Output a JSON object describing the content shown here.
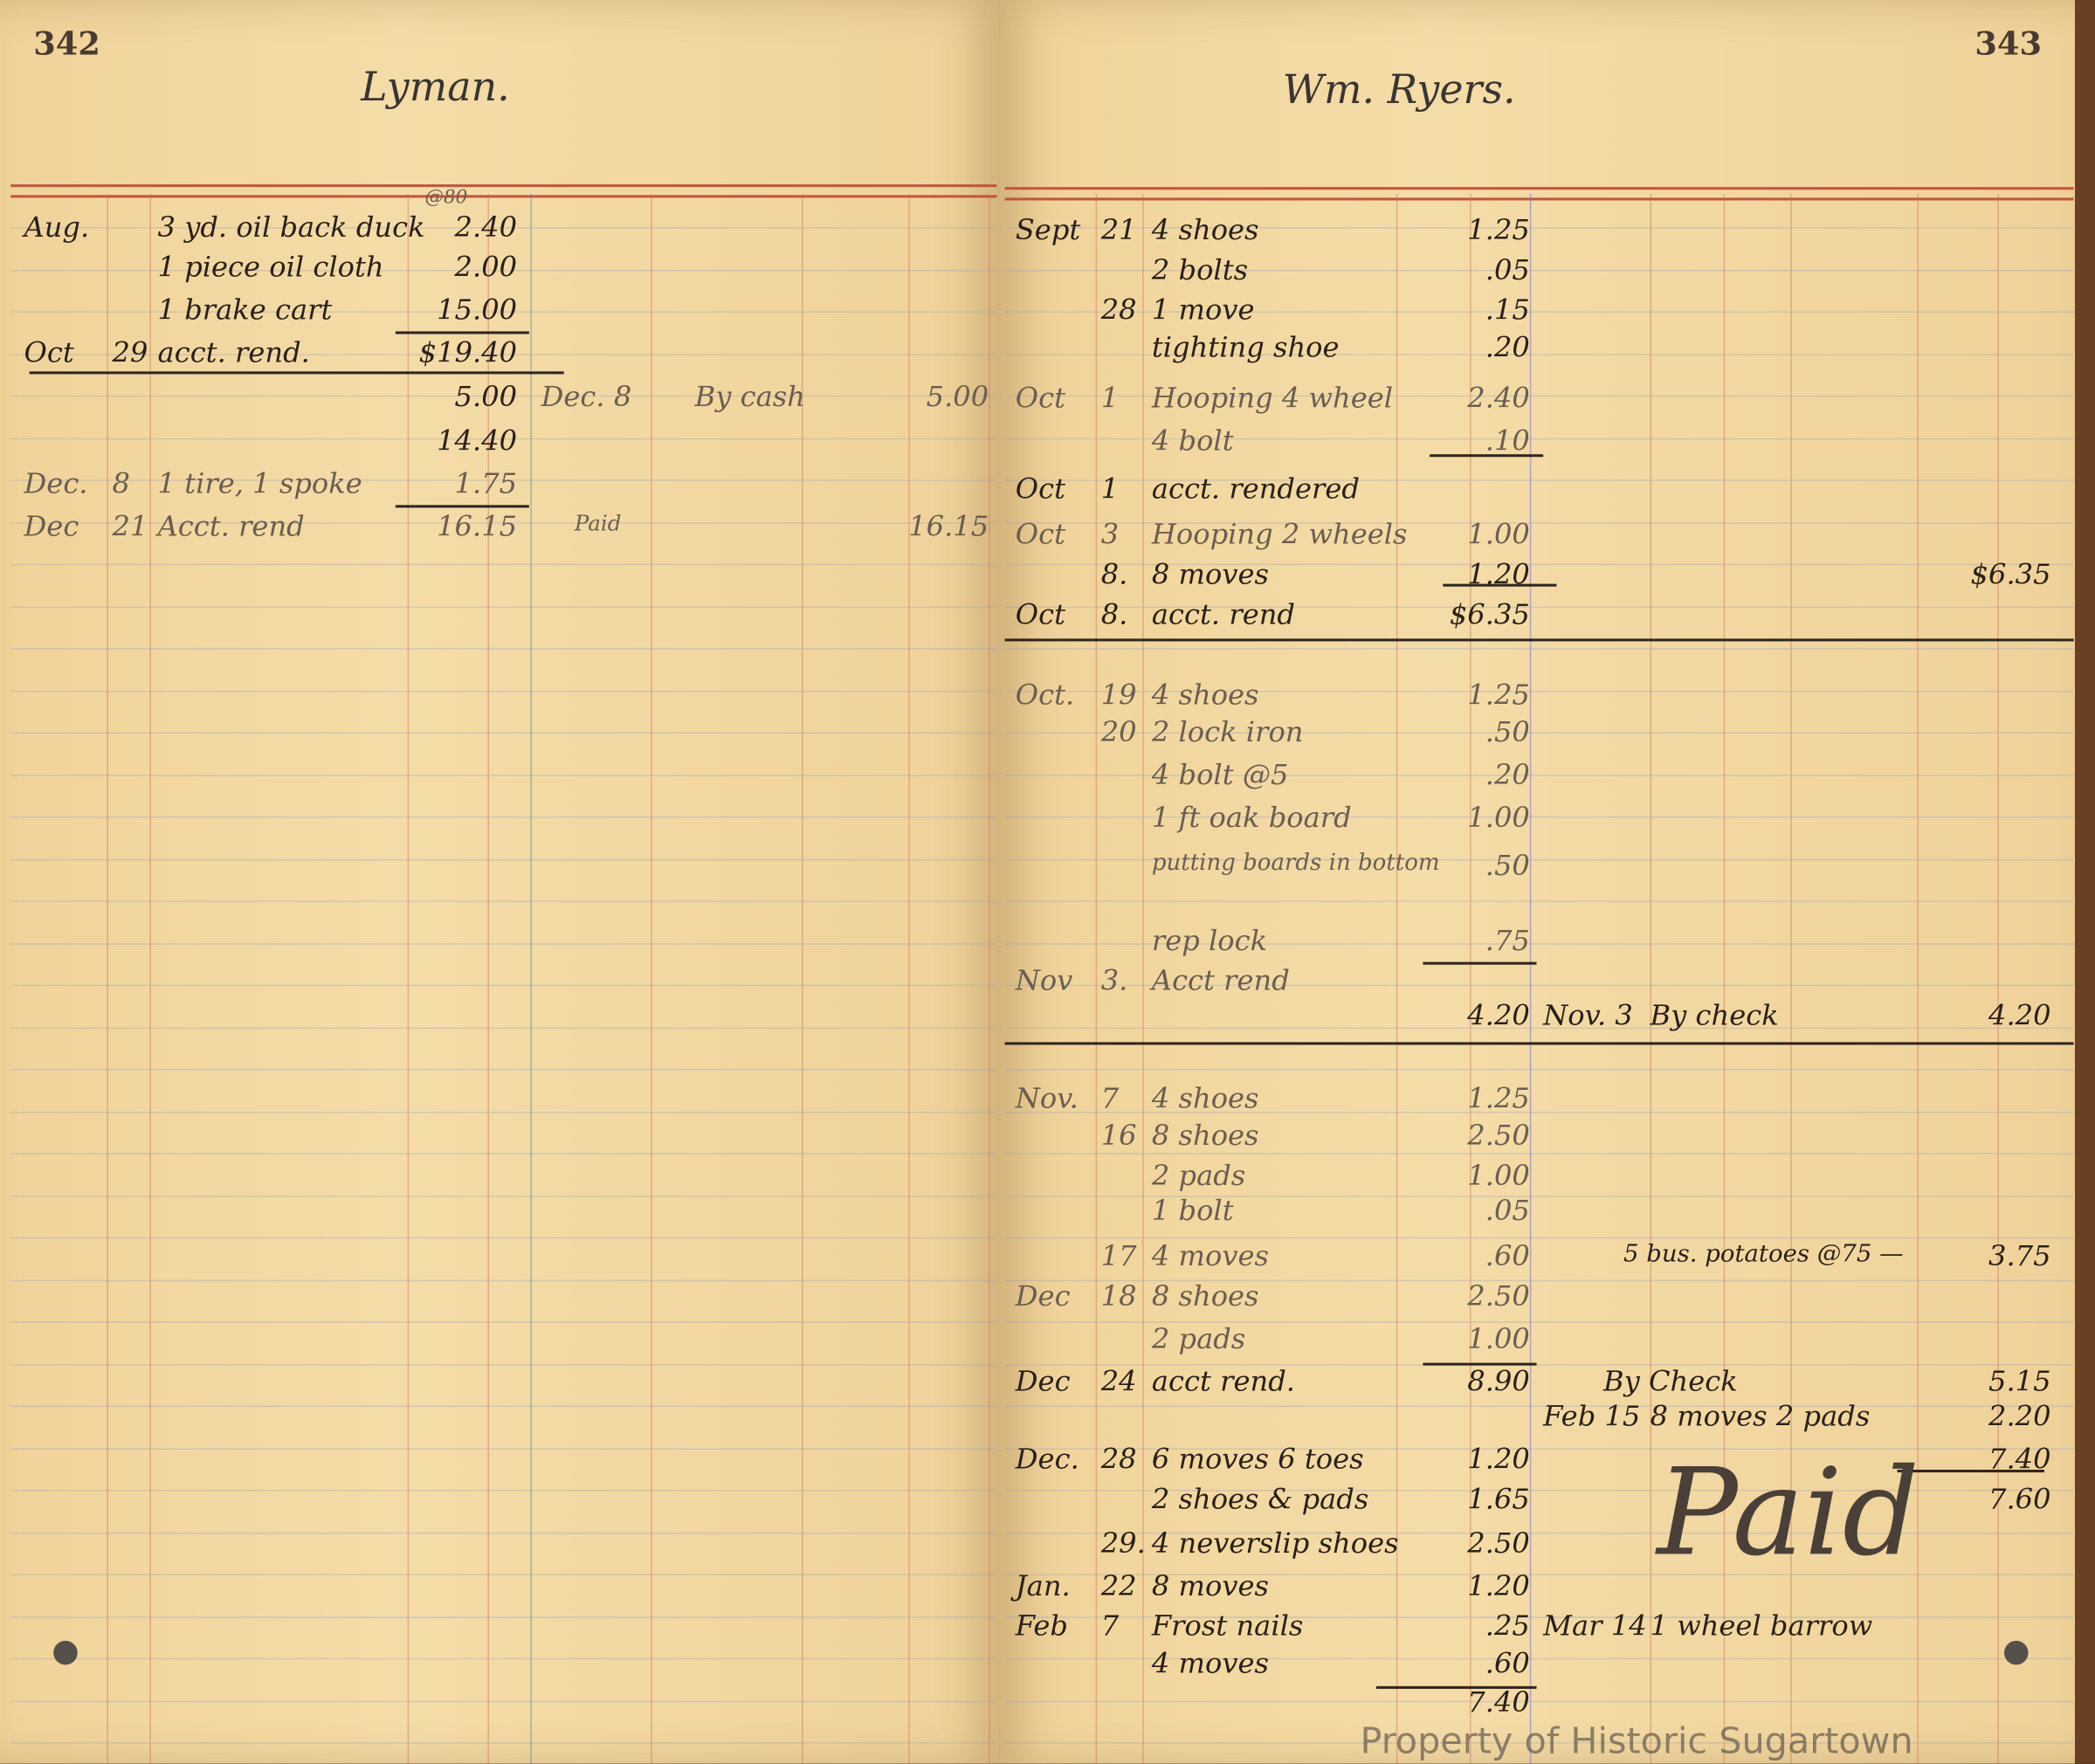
{
  "left_page": {
    "page_number": "342",
    "account_name": "Lyman.",
    "rows": [
      {
        "date": "Aug.",
        "day": "",
        "desc": "3 yd. oil back duck",
        "note": "@80",
        "amount": "2.40"
      },
      {
        "date": "",
        "day": "",
        "desc": "1 piece oil cloth",
        "amount": "2.00"
      },
      {
        "date": "",
        "day": "",
        "desc": "1 brake cart",
        "amount": "15.00"
      },
      {
        "date": "Oct",
        "day": "29",
        "desc": "acct. rend.",
        "amount": "$19.40"
      },
      {
        "date": "",
        "day": "",
        "desc": "",
        "amount": "5.00",
        "cr_date": "Dec. 8",
        "cr_desc": "By cash",
        "cr_amount": "5.00"
      },
      {
        "date": "",
        "day": "",
        "desc": "",
        "amount": "14.40"
      },
      {
        "date": "Dec.",
        "day": "8",
        "desc": "1 tire, 1 spoke",
        "amount": "1.75"
      },
      {
        "date": "Dec",
        "day": "21",
        "desc": "Acct. rend",
        "amount": "16.15",
        "cr_desc": "Paid",
        "cr_amount": "16.15"
      }
    ]
  },
  "right_page": {
    "page_number": "343",
    "account_name": "Wm. Ryers.",
    "rows": [
      {
        "date": "Sept",
        "day": "21",
        "desc": "4 shoes",
        "amount": "1.25"
      },
      {
        "date": "",
        "day": "",
        "desc": "2 bolts",
        "amount": ".05"
      },
      {
        "date": "",
        "day": "28",
        "desc": "1 move",
        "amount": ".15"
      },
      {
        "date": "",
        "day": "",
        "desc": "tighting shoe",
        "amount": ".20"
      },
      {
        "date": "Oct",
        "day": "1",
        "desc": "Hooping 4 wheel",
        "amount": "2.40"
      },
      {
        "date": "",
        "day": "",
        "desc": "4 bolt",
        "amount": ".10"
      },
      {
        "date": "Oct",
        "day": "1",
        "desc": "acct. rendered",
        "amount": ""
      },
      {
        "date": "Oct",
        "day": "3",
        "desc": "Hooping 2 wheels",
        "amount": "1.00"
      },
      {
        "date": "",
        "day": "8.",
        "desc": "8 moves",
        "amount": "1.20",
        "cr_amount": "$6.35"
      },
      {
        "date": "Oct",
        "day": "8.",
        "desc": "acct. rend",
        "amount": "$6.35"
      },
      {
        "date": "Oct.",
        "day": "19",
        "desc": "4 shoes",
        "amount": "1.25"
      },
      {
        "date": "",
        "day": "20",
        "desc": "2 lock iron",
        "amount": ".50"
      },
      {
        "date": "",
        "day": "",
        "desc": "4 bolt @5",
        "amount": ".20"
      },
      {
        "date": "",
        "day": "",
        "desc": "1 ft oak board",
        "amount": "1.00"
      },
      {
        "date": "",
        "day": "",
        "desc": "putting boards in bottom",
        "amount": ".50"
      },
      {
        "date": "",
        "day": "",
        "desc": "rep lock",
        "amount": ".75"
      },
      {
        "date": "Nov",
        "day": "3.",
        "desc": "Acct rend",
        "amount": ""
      },
      {
        "date": "",
        "day": "",
        "desc": "",
        "amount": "4.20",
        "cr_date": "Nov. 3",
        "cr_desc": "By check",
        "cr_amount": "4.20"
      },
      {
        "date": "Nov.",
        "day": "7",
        "desc": "4 shoes",
        "amount": "1.25"
      },
      {
        "date": "",
        "day": "16",
        "desc": "8 shoes",
        "amount": "2.50"
      },
      {
        "date": "",
        "day": "",
        "desc": "2 pads",
        "amount": "1.00"
      },
      {
        "date": "",
        "day": "",
        "desc": "1 bolt",
        "amount": ".05"
      },
      {
        "date": "",
        "day": "17",
        "desc": "4 moves",
        "amount": ".60",
        "cr_desc": "5 bus. potatoes @75 —",
        "cr_amount": "3.75"
      },
      {
        "date": "Dec",
        "day": "18",
        "desc": "8 shoes",
        "amount": "2.50"
      },
      {
        "date": "",
        "day": "",
        "desc": "2 pads",
        "amount": "1.00"
      },
      {
        "date": "Dec",
        "day": "24",
        "desc": "acct rend.",
        "amount": "8.90",
        "cr_desc": "By Check",
        "cr_amount": "5.15"
      },
      {
        "date": "",
        "day": "",
        "desc": "",
        "amount": "",
        "cr_date": "Feb 15",
        "cr_desc": "8 moves 2 pads",
        "cr_amount": "2.20"
      },
      {
        "date": "Dec.",
        "day": "28",
        "desc": "6 moves 6 toes",
        "amount": "1.20",
        "cr_amount": "7.40"
      },
      {
        "date": "",
        "day": "",
        "desc": "2 shoes & pads",
        "amount": "1.65",
        "cr_amount": "7.60"
      },
      {
        "date": "",
        "day": "29.",
        "desc": "4 neverslip shoes",
        "amount": "2.50"
      },
      {
        "date": "Jan.",
        "day": "22",
        "desc": "8 moves",
        "amount": "1.20"
      },
      {
        "date": "Feb",
        "day": "7",
        "desc": "Frost nails",
        "amount": ".25",
        "cr_date": "Mar 14",
        "cr_desc": "1 wheel barrow"
      },
      {
        "date": "",
        "day": "",
        "desc": "4 moves",
        "amount": ".60"
      },
      {
        "date": "",
        "day": "",
        "desc": "",
        "amount": "7.40"
      }
    ],
    "paid_signature": "Paid"
  },
  "watermark": "Property of Historic Sugartown"
}
